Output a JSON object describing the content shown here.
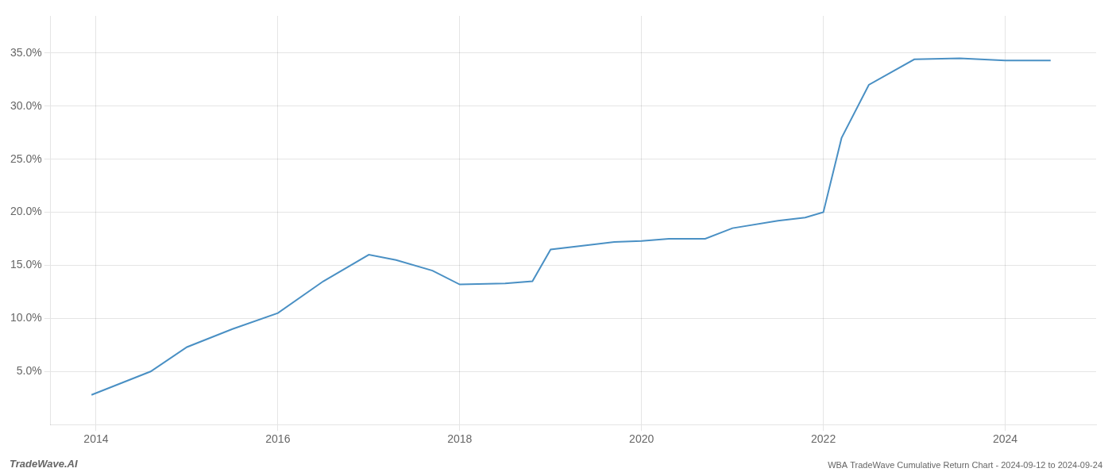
{
  "chart_data": {
    "type": "line",
    "x": [
      2013.95,
      2014.6,
      2015.0,
      2015.5,
      2016.0,
      2016.5,
      2017.0,
      2017.3,
      2017.7,
      2018.0,
      2018.5,
      2018.8,
      2019.0,
      2019.5,
      2019.7,
      2020.0,
      2020.3,
      2020.7,
      2021.0,
      2021.5,
      2021.8,
      2022.0,
      2022.2,
      2022.5,
      2023.0,
      2023.5,
      2024.0,
      2024.5
    ],
    "values": [
      2.8,
      5.0,
      7.3,
      9.0,
      10.5,
      13.5,
      16.0,
      15.5,
      14.5,
      13.2,
      13.3,
      13.5,
      16.5,
      17.0,
      17.2,
      17.3,
      17.5,
      17.5,
      18.5,
      19.2,
      19.5,
      20.0,
      27.0,
      32.0,
      34.4,
      34.5,
      34.3,
      34.3
    ],
    "color": "#4a90c4",
    "xlim": [
      2013.5,
      2025.0
    ],
    "xticks": [
      2014,
      2016,
      2018,
      2020,
      2022,
      2024
    ],
    "ylim": [
      0.0,
      38.5
    ],
    "yticks": [
      {
        "value": 5.0,
        "label": "5.0%"
      },
      {
        "value": 10.0,
        "label": "10.0%"
      },
      {
        "value": 15.0,
        "label": "15.0%"
      },
      {
        "value": 20.0,
        "label": "20.0%"
      },
      {
        "value": 25.0,
        "label": "25.0%"
      },
      {
        "value": 30.0,
        "label": "30.0%"
      },
      {
        "value": 35.0,
        "label": "35.0%"
      }
    ],
    "grid": true,
    "annotations": [
      "TradeWave.AI",
      "WBA TradeWave Cumulative Return Chart - 2024-09-12 to 2024-09-24"
    ]
  }
}
